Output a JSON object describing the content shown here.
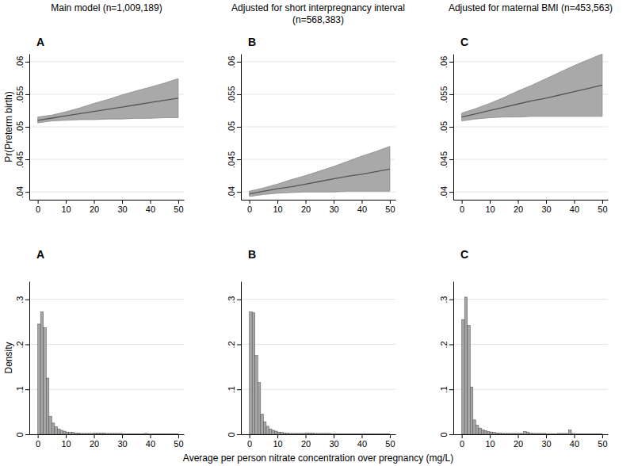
{
  "chart_data": [
    {
      "type": "line",
      "title": "Main model (n=1,009,189)",
      "annotations": [
        "A"
      ],
      "y_label": "Pr(Preterm birth)",
      "x": [
        0,
        5,
        10,
        15,
        20,
        25,
        30,
        35,
        40,
        45,
        50
      ],
      "series": [
        {
          "color": "#555555",
          "values": [
            0.051,
            0.05134,
            0.05168,
            0.05202,
            0.05236,
            0.0527,
            0.05304,
            0.05338,
            0.05372,
            0.05406,
            0.0544
          ],
          "lower": [
            0.0506,
            0.0509,
            0.051,
            0.0511,
            0.0511,
            0.0512,
            0.0512,
            0.0513,
            0.0513,
            0.0514,
            0.0514
          ],
          "upper": [
            0.0515,
            0.0518,
            0.0523,
            0.0529,
            0.0536,
            0.0542,
            0.0549,
            0.0555,
            0.0561,
            0.0567,
            0.0574
          ]
        }
      ],
      "xlim": [
        -3,
        52
      ],
      "xticks": [
        0,
        10,
        20,
        30,
        40,
        50
      ],
      "ylim": [
        0.0388,
        0.0612
      ],
      "yticks": [
        {
          "value": 0.04,
          "label": ".04"
        },
        {
          "value": 0.045,
          "label": ".045"
        },
        {
          "value": 0.05,
          "label": ".05"
        },
        {
          "value": 0.055,
          "label": ".055"
        },
        {
          "value": 0.06,
          "label": ".06"
        }
      ],
      "grid": true
    },
    {
      "type": "line",
      "title": "Adjusted for short interpregnancy interval (n=568,383)",
      "annotations": [
        "B"
      ],
      "x": [
        0,
        5,
        10,
        15,
        20,
        25,
        30,
        35,
        40,
        45,
        50
      ],
      "series": [
        {
          "color": "#555555",
          "values": [
            0.0397,
            0.0401,
            0.0405,
            0.0408,
            0.0412,
            0.0416,
            0.042,
            0.0424,
            0.0427,
            0.0431,
            0.0435
          ],
          "lower": [
            0.0393,
            0.0396,
            0.0398,
            0.0399,
            0.04,
            0.04,
            0.04,
            0.0401,
            0.0401,
            0.0401,
            0.0401
          ],
          "upper": [
            0.0401,
            0.0406,
            0.0412,
            0.0419,
            0.0425,
            0.0432,
            0.0439,
            0.0447,
            0.0455,
            0.0462,
            0.047
          ]
        }
      ],
      "xlim": [
        -3,
        52
      ],
      "xticks": [
        0,
        10,
        20,
        30,
        40,
        50
      ],
      "ylim": [
        0.0388,
        0.0612
      ],
      "yticks": [
        {
          "value": 0.04,
          "label": ".04"
        },
        {
          "value": 0.045,
          "label": ".045"
        },
        {
          "value": 0.05,
          "label": ".05"
        },
        {
          "value": 0.055,
          "label": ".055"
        },
        {
          "value": 0.06,
          "label": ".06"
        }
      ],
      "grid": true
    },
    {
      "type": "line",
      "title": "Adjusted for maternal BMI (n=453,563)",
      "annotations": [
        "C"
      ],
      "x": [
        0,
        5,
        10,
        15,
        20,
        25,
        30,
        35,
        40,
        45,
        50
      ],
      "series": [
        {
          "color": "#555555",
          "values": [
            0.0515,
            0.052,
            0.0525,
            0.053,
            0.0535,
            0.054,
            0.0544,
            0.0549,
            0.0554,
            0.0559,
            0.0564
          ],
          "lower": [
            0.0509,
            0.0512,
            0.0514,
            0.0515,
            0.0515,
            0.0516,
            0.0516,
            0.0516,
            0.0516,
            0.0516,
            0.0516
          ],
          "upper": [
            0.0521,
            0.0528,
            0.0536,
            0.0545,
            0.0555,
            0.0564,
            0.0574,
            0.0584,
            0.0594,
            0.0603,
            0.0612
          ]
        }
      ],
      "xlim": [
        -3,
        52
      ],
      "xticks": [
        0,
        10,
        20,
        30,
        40,
        50
      ],
      "ylim": [
        0.0388,
        0.0612
      ],
      "yticks": [
        {
          "value": 0.04,
          "label": ".04"
        },
        {
          "value": 0.045,
          "label": ".045"
        },
        {
          "value": 0.05,
          "label": ".05"
        },
        {
          "value": 0.055,
          "label": ".055"
        },
        {
          "value": 0.06,
          "label": ".06"
        }
      ],
      "grid": true
    },
    {
      "type": "histogram",
      "annotations": [
        "A"
      ],
      "y_label": "Density",
      "color": "#a6a6a6",
      "bins": [
        0,
        1,
        2,
        3,
        4,
        5,
        6,
        7,
        8,
        9,
        10,
        11,
        12,
        13,
        14,
        15,
        16,
        17,
        18,
        19,
        20,
        21,
        22,
        23,
        24,
        25,
        26,
        27,
        28,
        29,
        30,
        31,
        32,
        33,
        34,
        35,
        36,
        37,
        38,
        39,
        40,
        41,
        42,
        43,
        44,
        45,
        46,
        47,
        48,
        49,
        50
      ],
      "values": [
        0.245,
        0.272,
        0.237,
        0.125,
        0.04,
        0.025,
        0.017,
        0.012,
        0.009,
        0.007,
        0.005,
        0.004,
        0.004,
        0.003,
        0.003,
        0.002,
        0.002,
        0.002,
        0.002,
        0.002,
        0.003,
        0.003,
        0.003,
        0.003,
        0.002,
        0.002,
        0.002,
        0.002,
        0.002,
        0.002,
        0.001,
        0.001,
        0.001,
        0.001,
        0.001,
        0.001,
        0.001,
        0.001,
        0.002,
        0.001,
        0.001,
        0.001,
        0.001,
        0.001,
        0.001,
        0.001,
        0.001,
        0.001,
        0.001,
        0.001
      ],
      "xlim": [
        -3,
        52
      ],
      "xticks": [
        0,
        10,
        20,
        30,
        40,
        50
      ],
      "ylim": [
        0,
        0.34
      ],
      "yticks": [
        0,
        {
          "value": 0.1,
          "label": ".1"
        },
        {
          "value": 0.2,
          "label": ".2"
        },
        {
          "value": 0.3,
          "label": ".3"
        }
      ],
      "grid": true
    },
    {
      "type": "histogram",
      "annotations": [
        "B"
      ],
      "x_label": "Average per person nitrate concentration over pregnancy (mg/L)",
      "color": "#a6a6a6",
      "bins": [
        0,
        1,
        2,
        3,
        4,
        5,
        6,
        7,
        8,
        9,
        10,
        11,
        12,
        13,
        14,
        15,
        16,
        17,
        18,
        19,
        20,
        21,
        22,
        23,
        24,
        25,
        26,
        27,
        28,
        29,
        30,
        31,
        32,
        33,
        34,
        35,
        36,
        37,
        38,
        39,
        40,
        41,
        42,
        43,
        44,
        45,
        46,
        47,
        48,
        49,
        50
      ],
      "values": [
        0.272,
        0.27,
        0.175,
        0.115,
        0.045,
        0.028,
        0.018,
        0.012,
        0.009,
        0.007,
        0.005,
        0.004,
        0.003,
        0.003,
        0.002,
        0.002,
        0.002,
        0.002,
        0.002,
        0.002,
        0.003,
        0.003,
        0.003,
        0.002,
        0.002,
        0.002,
        0.002,
        0.002,
        0.002,
        0.001,
        0.001,
        0.001,
        0.001,
        0.001,
        0.001,
        0.001,
        0.001,
        0.001,
        0.001,
        0.001,
        0.001,
        0.001,
        0.001,
        0.001,
        0.001,
        0.001,
        0.001,
        0.001,
        0.001,
        0.001
      ],
      "xlim": [
        -3,
        52
      ],
      "xticks": [
        0,
        10,
        20,
        30,
        40,
        50
      ],
      "ylim": [
        0,
        0.34
      ],
      "yticks": [
        0,
        {
          "value": 0.1,
          "label": ".1"
        },
        {
          "value": 0.2,
          "label": ".2"
        },
        {
          "value": 0.3,
          "label": ".3"
        }
      ],
      "grid": true
    },
    {
      "type": "histogram",
      "annotations": [
        "C"
      ],
      "color": "#a6a6a6",
      "bins": [
        0,
        1,
        2,
        3,
        4,
        5,
        6,
        7,
        8,
        9,
        10,
        11,
        12,
        13,
        14,
        15,
        16,
        17,
        18,
        19,
        20,
        21,
        22,
        23,
        24,
        25,
        26,
        27,
        28,
        29,
        30,
        31,
        32,
        33,
        34,
        35,
        36,
        37,
        38,
        39,
        40,
        41,
        42,
        43,
        44,
        45,
        46,
        47,
        48,
        49,
        50
      ],
      "values": [
        0.255,
        0.305,
        0.242,
        0.105,
        0.032,
        0.02,
        0.014,
        0.01,
        0.008,
        0.006,
        0.005,
        0.004,
        0.003,
        0.003,
        0.002,
        0.002,
        0.002,
        0.002,
        0.002,
        0.002,
        0.002,
        0.002,
        0.006,
        0.005,
        0.003,
        0.002,
        0.002,
        0.002,
        0.002,
        0.002,
        0.001,
        0.001,
        0.001,
        0.001,
        0.002,
        0.002,
        0.002,
        0.002,
        0.01,
        0.002,
        0.001,
        0.001,
        0.001,
        0.001,
        0.001,
        0.001,
        0.001,
        0.001,
        0.001,
        0.001
      ],
      "xlim": [
        -3,
        52
      ],
      "xticks": [
        0,
        10,
        20,
        30,
        40,
        50
      ],
      "ylim": [
        0,
        0.34
      ],
      "yticks": [
        0,
        {
          "value": 0.1,
          "label": ".1"
        },
        {
          "value": 0.2,
          "label": ".2"
        },
        {
          "value": 0.3,
          "label": ".3"
        }
      ],
      "grid": true
    }
  ]
}
